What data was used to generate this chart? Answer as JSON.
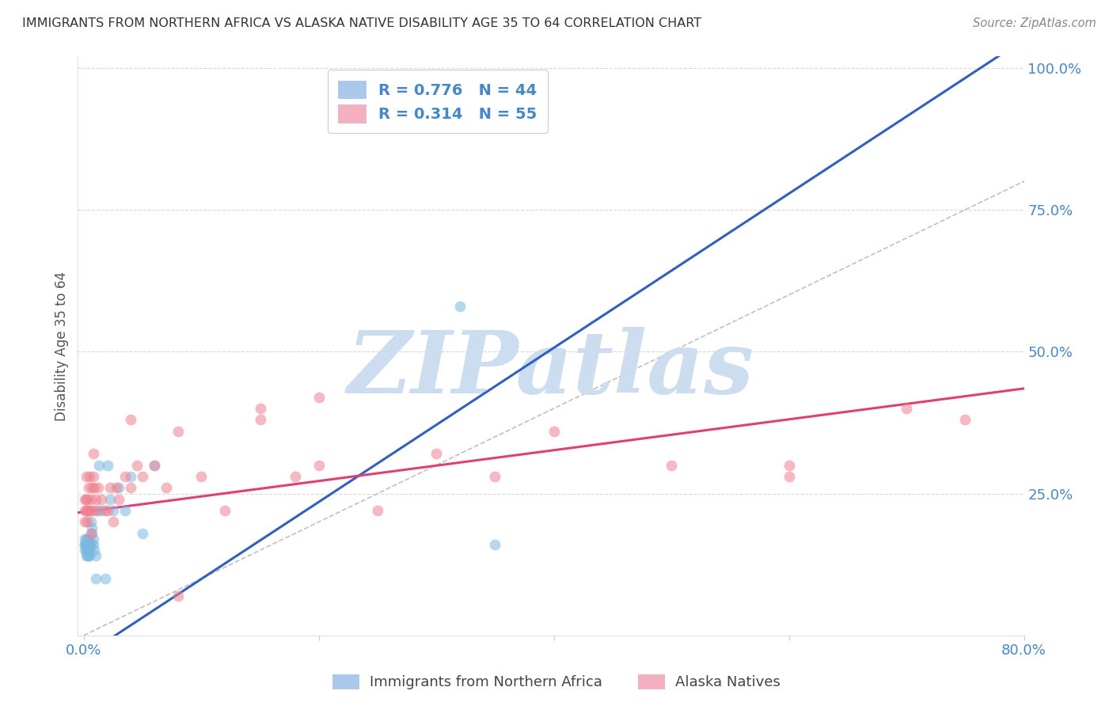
{
  "title": "IMMIGRANTS FROM NORTHERN AFRICA VS ALASKA NATIVE DISABILITY AGE 35 TO 64 CORRELATION CHART",
  "source": "Source: ZipAtlas.com",
  "ylabel": "Disability Age 35 to 64",
  "legend_labels": [
    "Immigrants from Northern Africa",
    "Alaska Natives"
  ],
  "blue_scatter_x": [
    0.001,
    0.001,
    0.001,
    0.001,
    0.002,
    0.002,
    0.002,
    0.002,
    0.002,
    0.003,
    0.003,
    0.003,
    0.003,
    0.003,
    0.004,
    0.004,
    0.004,
    0.004,
    0.005,
    0.005,
    0.005,
    0.006,
    0.006,
    0.007,
    0.007,
    0.008,
    0.008,
    0.009,
    0.01,
    0.01,
    0.012,
    0.013,
    0.015,
    0.018,
    0.02,
    0.022,
    0.025,
    0.03,
    0.035,
    0.04,
    0.05,
    0.06,
    0.35,
    0.32
  ],
  "blue_scatter_y": [
    0.16,
    0.17,
    0.16,
    0.15,
    0.17,
    0.16,
    0.15,
    0.14,
    0.16,
    0.15,
    0.14,
    0.16,
    0.17,
    0.15,
    0.14,
    0.15,
    0.16,
    0.17,
    0.15,
    0.16,
    0.14,
    0.2,
    0.16,
    0.18,
    0.19,
    0.17,
    0.16,
    0.15,
    0.14,
    0.1,
    0.22,
    0.3,
    0.22,
    0.1,
    0.3,
    0.24,
    0.22,
    0.26,
    0.22,
    0.28,
    0.18,
    0.3,
    0.16,
    0.58
  ],
  "pink_scatter_x": [
    0.001,
    0.001,
    0.001,
    0.002,
    0.002,
    0.002,
    0.003,
    0.003,
    0.003,
    0.004,
    0.004,
    0.005,
    0.005,
    0.006,
    0.006,
    0.007,
    0.007,
    0.008,
    0.008,
    0.009,
    0.01,
    0.01,
    0.012,
    0.015,
    0.018,
    0.02,
    0.022,
    0.025,
    0.028,
    0.03,
    0.035,
    0.04,
    0.045,
    0.05,
    0.06,
    0.07,
    0.08,
    0.1,
    0.12,
    0.15,
    0.18,
    0.2,
    0.25,
    0.3,
    0.35,
    0.4,
    0.5,
    0.6,
    0.7,
    0.75,
    0.15,
    0.2,
    0.04,
    0.6,
    0.08
  ],
  "pink_scatter_y": [
    0.2,
    0.22,
    0.24,
    0.28,
    0.24,
    0.22,
    0.2,
    0.22,
    0.24,
    0.22,
    0.26,
    0.22,
    0.28,
    0.24,
    0.18,
    0.26,
    0.22,
    0.28,
    0.32,
    0.26,
    0.24,
    0.22,
    0.26,
    0.24,
    0.22,
    0.22,
    0.26,
    0.2,
    0.26,
    0.24,
    0.28,
    0.26,
    0.3,
    0.28,
    0.3,
    0.26,
    0.07,
    0.28,
    0.22,
    0.38,
    0.28,
    0.3,
    0.22,
    0.32,
    0.28,
    0.36,
    0.3,
    0.28,
    0.4,
    0.38,
    0.4,
    0.42,
    0.38,
    0.3,
    0.36
  ],
  "blue_line_x": [
    -0.01,
    0.8
  ],
  "blue_line_y": [
    -0.05,
    1.05
  ],
  "pink_line_x": [
    -0.01,
    0.8
  ],
  "pink_line_y": [
    0.215,
    0.435
  ],
  "ref_line_x": [
    0.0,
    1.0
  ],
  "ref_line_y": [
    0.0,
    1.0
  ],
  "xlim": [
    -0.005,
    0.8
  ],
  "ylim": [
    0.0,
    1.02
  ],
  "background_color": "#ffffff",
  "title_color": "#333333",
  "source_color": "#888888",
  "blue_color": "#7ab8e0",
  "blue_line_color": "#3060c0",
  "pink_color": "#f08090",
  "pink_line_color": "#e04070",
  "ref_line_color": "#c0c0c0",
  "grid_color": "#d8d8d8",
  "axis_label_color": "#4488cc",
  "watermark_color": "#ccddf0",
  "watermark_text": "ZIPatlas",
  "watermark_fontsize": 80,
  "legend_box_blue": "#aac8ec",
  "legend_box_pink": "#f4afc0"
}
